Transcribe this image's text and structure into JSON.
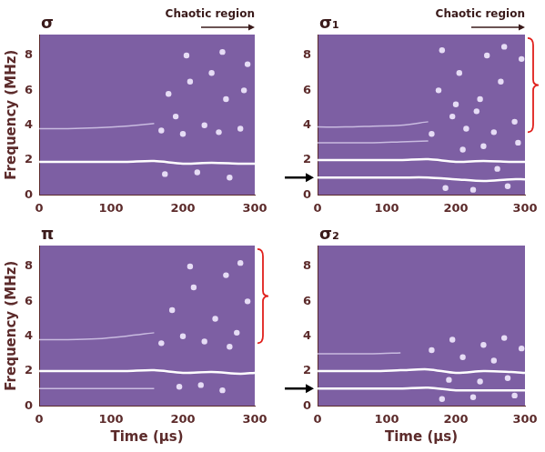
{
  "chart_data": [
    {
      "type": "line",
      "title": "σ",
      "ylabel": "Frequency (MHz)",
      "annotation": "Chaotic region",
      "xlim": [
        0,
        300
      ],
      "xticks": [
        0,
        100,
        200,
        300
      ],
      "ylim": [
        0,
        9.2
      ],
      "yticks": [
        0,
        2,
        4,
        6,
        8
      ],
      "grid": false,
      "x": [
        0,
        40,
        80,
        120,
        160,
        200,
        240,
        280,
        300
      ],
      "series": [
        {
          "type": "line",
          "color": "#ffffff",
          "values": [
            1.9,
            1.9,
            1.9,
            1.9,
            1.95,
            1.8,
            1.85,
            1.8,
            1.8
          ]
        },
        {
          "type": "line",
          "color": "#c9bbe0",
          "values": [
            3.8,
            3.8,
            3.85,
            3.95,
            4.1,
            null,
            null,
            null,
            null
          ]
        },
        {
          "type": "scatter",
          "color": "#e6dcf5",
          "x": [
            170,
            180,
            200,
            210,
            230,
            250,
            260,
            280,
            290,
            175,
            220,
            265,
            190,
            240,
            285,
            205,
            255
          ],
          "values": [
            3.7,
            5.8,
            3.5,
            6.5,
            4.0,
            3.6,
            5.5,
            3.8,
            7.5,
            1.2,
            1.3,
            1.0,
            4.5,
            7.0,
            6.0,
            8.0,
            8.2
          ]
        }
      ]
    },
    {
      "type": "line",
      "title": "σ₁",
      "annotation": "Chaotic region",
      "marked_frequency": 1,
      "bracket": [
        3.6,
        9
      ],
      "xlim": [
        0,
        300
      ],
      "xticks": [
        0,
        100,
        200,
        300
      ],
      "ylim": [
        0,
        9.2
      ],
      "yticks": [
        0,
        2,
        4,
        6,
        8
      ],
      "grid": false,
      "x": [
        0,
        40,
        80,
        120,
        160,
        200,
        240,
        280,
        300
      ],
      "series": [
        {
          "type": "line",
          "color": "#ffffff",
          "values": [
            1.0,
            1.0,
            1.0,
            1.0,
            1.0,
            0.9,
            0.8,
            0.9,
            0.9
          ]
        },
        {
          "type": "line",
          "color": "#ffffff",
          "values": [
            2.0,
            2.0,
            2.0,
            2.0,
            2.05,
            1.9,
            1.95,
            1.9,
            1.9
          ]
        },
        {
          "type": "line",
          "color": "#c9bbe0",
          "values": [
            3.0,
            3.0,
            3.0,
            3.05,
            3.1,
            null,
            null,
            null,
            null
          ]
        },
        {
          "type": "line",
          "color": "#c9bbe0",
          "values": [
            3.9,
            3.9,
            3.95,
            4.0,
            4.2,
            null,
            null,
            null,
            null
          ]
        },
        {
          "type": "scatter",
          "color": "#e6dcf5",
          "x": [
            165,
            175,
            185,
            195,
            205,
            215,
            225,
            235,
            245,
            255,
            265,
            275,
            285,
            295,
            180,
            210,
            240,
            270,
            290,
            200,
            230,
            260
          ],
          "values": [
            3.5,
            6.0,
            0.4,
            4.5,
            7.0,
            3.8,
            0.3,
            5.5,
            8.0,
            3.6,
            6.5,
            0.5,
            4.2,
            7.8,
            8.3,
            2.6,
            2.8,
            8.5,
            3.0,
            5.2,
            4.8,
            1.5
          ]
        }
      ]
    },
    {
      "type": "line",
      "title": "π",
      "ylabel": "Frequency (MHz)",
      "xlabel": "Time (μs)",
      "bracket": [
        3.6,
        9
      ],
      "xlim": [
        0,
        300
      ],
      "xticks": [
        0,
        100,
        200,
        300
      ],
      "ylim": [
        0,
        9.2
      ],
      "yticks": [
        0,
        2,
        4,
        6,
        8
      ],
      "grid": false,
      "x": [
        0,
        40,
        80,
        120,
        160,
        200,
        240,
        280,
        300
      ],
      "series": [
        {
          "type": "line",
          "color": "#ffffff",
          "values": [
            2.0,
            2.0,
            2.0,
            2.0,
            2.05,
            1.9,
            1.95,
            1.85,
            1.9
          ]
        },
        {
          "type": "line",
          "color": "#c9bbe0",
          "values": [
            1.0,
            1.0,
            1.0,
            1.0,
            1.0,
            null,
            null,
            null,
            null
          ]
        },
        {
          "type": "line",
          "color": "#c9bbe0",
          "values": [
            3.8,
            3.8,
            3.85,
            4.0,
            4.2,
            null,
            null,
            null,
            null
          ]
        },
        {
          "type": "scatter",
          "color": "#e6dcf5",
          "x": [
            170,
            185,
            200,
            215,
            230,
            245,
            260,
            275,
            290,
            195,
            225,
            255,
            280,
            210,
            265
          ],
          "values": [
            3.6,
            5.5,
            4.0,
            6.8,
            3.7,
            5.0,
            7.5,
            4.2,
            6.0,
            1.1,
            1.2,
            0.9,
            8.2,
            8.0,
            3.4
          ]
        }
      ]
    },
    {
      "type": "line",
      "title": "σ₂",
      "xlabel": "Time (μs)",
      "marked_frequency": 1,
      "xlim": [
        0,
        300
      ],
      "xticks": [
        0,
        100,
        200,
        300
      ],
      "ylim": [
        0,
        9.2
      ],
      "yticks": [
        0,
        2,
        4,
        6,
        8
      ],
      "grid": false,
      "x": [
        0,
        40,
        80,
        120,
        160,
        200,
        240,
        280,
        300
      ],
      "series": [
        {
          "type": "line",
          "color": "#ffffff",
          "values": [
            1.0,
            1.0,
            1.0,
            1.0,
            1.05,
            0.9,
            0.9,
            0.9,
            0.9
          ]
        },
        {
          "type": "line",
          "color": "#ffffff",
          "values": [
            2.0,
            2.0,
            2.0,
            2.05,
            2.1,
            1.9,
            2.0,
            1.95,
            1.9
          ]
        },
        {
          "type": "line",
          "color": "#c9bbe0",
          "values": [
            3.0,
            3.0,
            3.0,
            3.05,
            null,
            null,
            null,
            null,
            null
          ]
        },
        {
          "type": "scatter",
          "color": "#e6dcf5",
          "x": [
            165,
            180,
            195,
            210,
            225,
            240,
            255,
            270,
            285,
            295,
            190,
            235,
            275
          ],
          "values": [
            3.2,
            0.4,
            3.8,
            2.8,
            0.5,
            3.5,
            2.6,
            3.9,
            0.6,
            3.3,
            1.5,
            1.4,
            1.6
          ]
        }
      ]
    }
  ]
}
